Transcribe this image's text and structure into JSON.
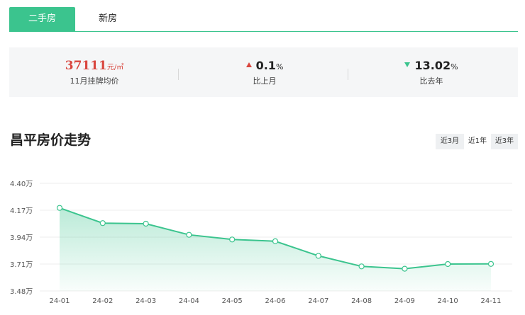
{
  "tabs": [
    {
      "label": "二手房",
      "active": true
    },
    {
      "label": "新房",
      "active": false
    }
  ],
  "stats": {
    "price": {
      "value": "37111",
      "unit": "元/㎡",
      "label": "11月挂牌均价"
    },
    "mom": {
      "direction": "up",
      "value": "0.1",
      "unit": "%",
      "label": "比上月"
    },
    "yoy": {
      "direction": "down",
      "value": "13.02",
      "unit": "%",
      "label": "比去年"
    }
  },
  "section_title": "昌平房价走势",
  "ranges": [
    {
      "label": "近3月",
      "selected": false
    },
    {
      "label": "近1年",
      "selected": true
    },
    {
      "label": "近3年",
      "selected": false
    }
  ],
  "colors": {
    "accent": "#3bc48e",
    "up": "#d9463e",
    "down": "#3bc48e"
  },
  "chart_data": {
    "type": "area",
    "categories": [
      "24-01",
      "24-02",
      "24-03",
      "24-04",
      "24-05",
      "24-06",
      "24-07",
      "24-08",
      "24-09",
      "24-10",
      "24-11"
    ],
    "values": [
      4.19,
      4.06,
      4.055,
      3.96,
      3.92,
      3.905,
      3.78,
      3.69,
      3.67,
      3.71,
      3.711
    ],
    "y_ticks": [
      "4.40万",
      "4.17万",
      "3.94万",
      "3.71万",
      "3.48万"
    ],
    "ylim": [
      3.48,
      4.4
    ],
    "grid": true,
    "xlabel": "",
    "ylabel": ""
  }
}
